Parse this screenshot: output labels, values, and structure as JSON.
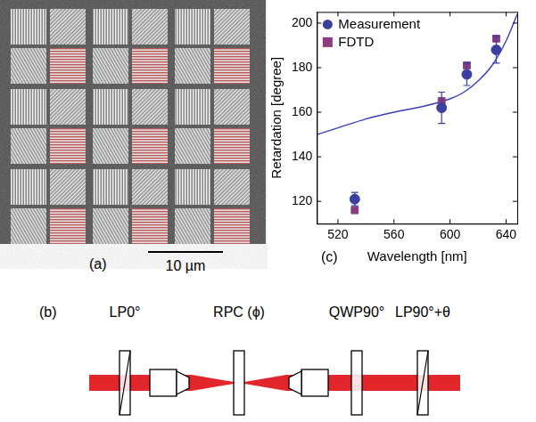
{
  "micrograph": {
    "panel_label": "(a)",
    "scale_bar_label": "10 µm"
  },
  "setup": {
    "panel_label": "(b)",
    "components": [
      "LP0°",
      "RPC (ϕ)",
      "QWP90°",
      "LP90°+θ"
    ]
  },
  "chart_data": {
    "panel_label": "(c)",
    "type": "scatter",
    "x_label": "Wavelength [nm]",
    "y_label": "Retardation [degree]",
    "xlim": [
      505,
      648
    ],
    "xticks": [
      520,
      560,
      600,
      640
    ],
    "ylim": [
      110,
      205
    ],
    "yticks": [
      120,
      140,
      160,
      180,
      200
    ],
    "grid": false,
    "legend": "upper left",
    "series": [
      {
        "name": "Measurement",
        "color": "#3b3f9e",
        "marker": "circle",
        "x": [
          532,
          594,
          612,
          633
        ],
        "values": [
          121,
          162,
          177,
          188
        ],
        "errors": [
          3,
          7,
          5,
          6
        ]
      },
      {
        "name": "FDTD",
        "color": "#8b3b80",
        "marker": "square",
        "x": [
          532,
          594,
          612,
          633
        ],
        "values": [
          116,
          165,
          181,
          193
        ]
      },
      {
        "type": "line",
        "color": "#3a3fb8",
        "line_style": "solid",
        "x": [
          505,
          520,
          540,
          560,
          580,
          600,
          610,
          620,
          630,
          640,
          648
        ],
        "values": [
          150,
          153,
          157,
          160,
          162.5,
          166,
          169,
          174,
          181,
          192,
          204
        ]
      }
    ]
  }
}
